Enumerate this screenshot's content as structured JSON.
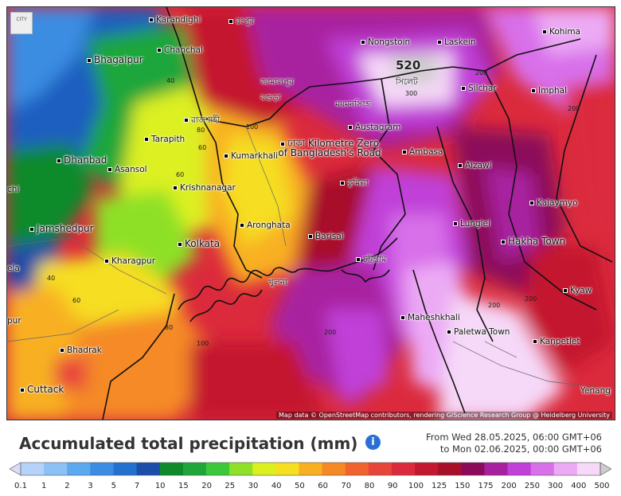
{
  "logo_text": "CITY",
  "peak_label": "520",
  "map": {
    "places": [
      {
        "id": "karandighi",
        "label": "Karandighi",
        "dot": true
      },
      {
        "id": "chanchal",
        "label": "Chanchal",
        "dot": true
      },
      {
        "id": "bhagalpur",
        "label": "Bhagalpur",
        "dot": true
      },
      {
        "id": "nongstoin",
        "label": "Nongstoin",
        "dot": true
      },
      {
        "id": "laskein",
        "label": "Laskein",
        "dot": true
      },
      {
        "id": "kohima",
        "label": "Kohima",
        "dot": true
      },
      {
        "id": "silchar",
        "label": "Silchar",
        "dot": true
      },
      {
        "id": "imphal",
        "label": "Imphal",
        "dot": true
      },
      {
        "id": "tarapith",
        "label": "Tarapith",
        "dot": true
      },
      {
        "id": "austagram",
        "label": "Austagram",
        "dot": true
      },
      {
        "id": "dhanbad",
        "label": "Dhanbad",
        "dot": true
      },
      {
        "id": "asansol",
        "label": "Asansol",
        "dot": true
      },
      {
        "id": "kumarkhali",
        "label": "Kumarkhali",
        "dot": true
      },
      {
        "id": "dhaka",
        "label": "ঢাকা Kilometre Zero of Bangladesh's Road",
        "dot": true
      },
      {
        "id": "ambasa",
        "label": "Ambasa",
        "dot": true
      },
      {
        "id": "aizawl",
        "label": "Aizawl",
        "dot": true
      },
      {
        "id": "krishnanagar",
        "label": "Krishnanagar",
        "dot": true
      },
      {
        "id": "comilla",
        "label": "কুমিল্লা",
        "dot": true
      },
      {
        "id": "kalaymyo",
        "label": "Kalaymyo",
        "dot": true
      },
      {
        "id": "chi",
        "label": "chi",
        "dot": false
      },
      {
        "id": "jamshedpur",
        "label": "Jamshedpur",
        "dot": true
      },
      {
        "id": "aronghata",
        "label": "Aronghata",
        "dot": true
      },
      {
        "id": "barisal",
        "label": "Barisal",
        "dot": true
      },
      {
        "id": "lunglei",
        "label": "Lunglei",
        "dot": true
      },
      {
        "id": "kolkata",
        "label": "Kolkata",
        "dot": true
      },
      {
        "id": "hakha",
        "label": "Hakha Town",
        "dot": true
      },
      {
        "id": "kharagpur",
        "label": "Kharagpur",
        "dot": true
      },
      {
        "id": "chittagong",
        "label": "চট্টগ্রাম",
        "dot": true
      },
      {
        "id": "ela",
        "label": "ela",
        "dot": false
      },
      {
        "id": "kyaw",
        "label": "Kyaw",
        "dot": true
      },
      {
        "id": "pur",
        "label": "pur",
        "dot": false
      },
      {
        "id": "maheshkhali",
        "label": "Maheshkhali",
        "dot": true
      },
      {
        "id": "paletwa",
        "label": "Paletwa Town",
        "dot": true
      },
      {
        "id": "kanpetlet",
        "label": "Kanpetlet",
        "dot": true
      },
      {
        "id": "bhadrak",
        "label": "Bhadrak",
        "dot": true
      },
      {
        "id": "cuttack",
        "label": "Cuttack",
        "dot": true
      },
      {
        "id": "yenang",
        "label": "Yenang",
        "dot": false
      },
      {
        "id": "rangpur",
        "label": "রংপুর",
        "dot": true
      },
      {
        "id": "sylhet",
        "label": "সিলেট",
        "dot": false
      },
      {
        "id": "jamalpur",
        "label": "জামালপুর",
        "dot": false
      },
      {
        "id": "bogura",
        "label": "বগুড়া",
        "dot": false
      },
      {
        "id": "mymensingh",
        "label": "ময়মনসিংহ",
        "dot": false
      },
      {
        "id": "rajshahi",
        "label": "রাজশাহী",
        "dot": true
      },
      {
        "id": "khulna",
        "label": "খুলনা",
        "dot": false
      }
    ],
    "contours": [
      "200",
      "40",
      "60",
      "80",
      "100",
      "60",
      "300",
      "200",
      "200",
      "40",
      "60",
      "80",
      "100",
      "200",
      "200"
    ],
    "attribution": "Map data © OpenStreetMap contributors, rendering GIScience Research Group @ Heidelberg University"
  },
  "header": {
    "title": "Accumulated total precipitation (mm)",
    "from": "From Wed 28.05.2025, 06:00 GMT+06",
    "to": "to Mon 02.06.2025, 00:00 GMT+06"
  },
  "legend": {
    "labels": [
      "0.1",
      "1",
      "2",
      "3",
      "5",
      "7",
      "10",
      "15",
      "20",
      "25",
      "30",
      "40",
      "50",
      "60",
      "70",
      "80",
      "90",
      "100",
      "125",
      "150",
      "175",
      "200",
      "250",
      "300",
      "400",
      "500"
    ],
    "colors": [
      "#d9dcf5",
      "#b5d3f8",
      "#8cc1f5",
      "#5da9f0",
      "#3a8de2",
      "#2470d0",
      "#1a4ea8",
      "#0f8a2a",
      "#1ea63a",
      "#3cc83a",
      "#8ee028",
      "#dcf020",
      "#f6de20",
      "#f8b020",
      "#f58a25",
      "#f0632d",
      "#e8453a",
      "#db2a3c",
      "#c4182e",
      "#a8102a",
      "#8c0a5a",
      "#a820a0",
      "#c040d8",
      "#d870ea",
      "#ecaaf5",
      "#f6d8f8",
      "#cccccc"
    ]
  }
}
